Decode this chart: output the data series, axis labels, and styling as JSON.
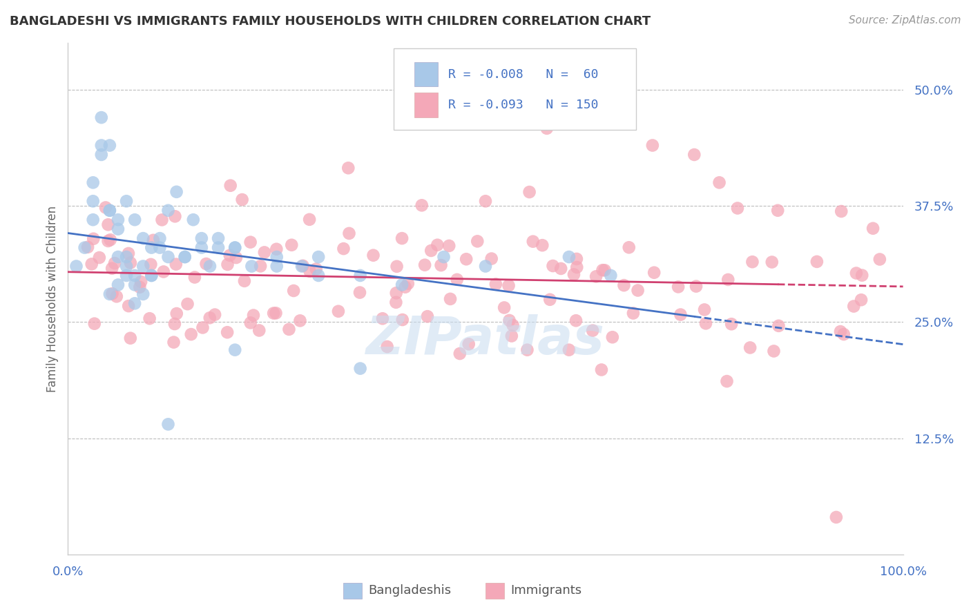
{
  "title": "BANGLADESHI VS IMMIGRANTS FAMILY HOUSEHOLDS WITH CHILDREN CORRELATION CHART",
  "source": "Source: ZipAtlas.com",
  "ylabel": "Family Households with Children",
  "r1": "-0.008",
  "n1": 60,
  "r2": "-0.093",
  "n2": 150,
  "legend_label1": "Bangladeshis",
  "legend_label2": "Immigrants",
  "color_blue": "#A8C8E8",
  "color_pink": "#F4A8B8",
  "line_blue": "#4472C4",
  "line_pink": "#D04070",
  "watermark": "ZIPatlas",
  "background_color": "#FFFFFF",
  "tick_color": "#4472C4",
  "title_color": "#333333",
  "source_color": "#999999",
  "ylabel_color": "#666666"
}
